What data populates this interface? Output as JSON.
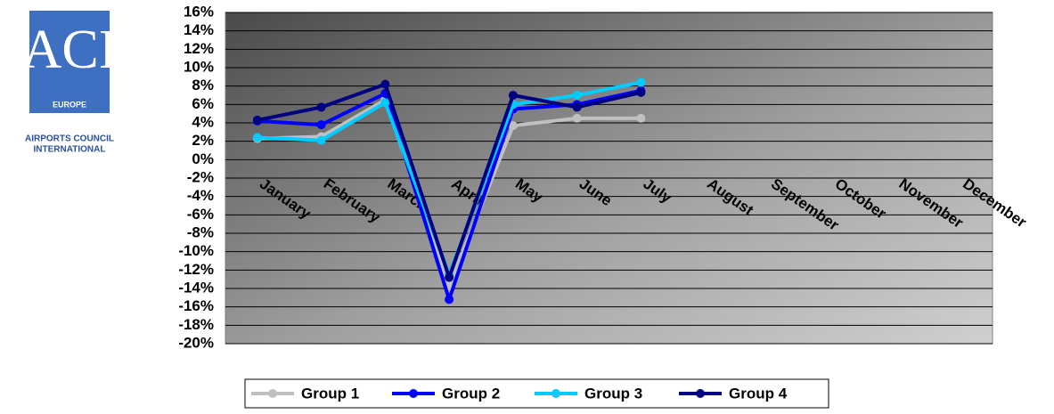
{
  "logo": {
    "mark": "ACI",
    "region": "EUROPE",
    "line1": "AIRPORTS COUNCIL",
    "line2": "INTERNATIONAL"
  },
  "chart_data": {
    "type": "line",
    "categories": [
      "January",
      "February",
      "March",
      "April",
      "May",
      "June",
      "July",
      "August",
      "September",
      "October",
      "November",
      "December"
    ],
    "series": [
      {
        "name": "Group 1",
        "color": "#c0c0c0",
        "values": [
          2.3,
          2.5,
          6.5,
          -13.8,
          3.7,
          4.5,
          4.5,
          null,
          null,
          null,
          null,
          null
        ]
      },
      {
        "name": "Group 2",
        "color": "#0000ff",
        "values": [
          4.2,
          3.8,
          7.2,
          -15.2,
          5.5,
          6.0,
          7.5,
          null,
          null,
          null,
          null,
          null
        ]
      },
      {
        "name": "Group 3",
        "color": "#00ccff",
        "values": [
          2.4,
          2.1,
          6.2,
          -12.5,
          6.0,
          7.0,
          8.4,
          null,
          null,
          null,
          null,
          null
        ]
      },
      {
        "name": "Group 4",
        "color": "#000080",
        "values": [
          4.3,
          5.7,
          8.2,
          -12.8,
          7.0,
          5.7,
          7.3,
          null,
          null,
          null,
          null,
          null
        ]
      }
    ],
    "ylim": [
      -20,
      16
    ],
    "yticks": [
      {
        "value": -20,
        "label": "-20%"
      },
      {
        "value": -18,
        "label": "-18%"
      },
      {
        "value": -16,
        "label": "-16%"
      },
      {
        "value": -14,
        "label": "-14%"
      },
      {
        "value": -12,
        "label": "-12%"
      },
      {
        "value": -10,
        "label": "-10%"
      },
      {
        "value": -8,
        "label": "-8%"
      },
      {
        "value": -6,
        "label": "-6%"
      },
      {
        "value": -4,
        "label": "-4%"
      },
      {
        "value": -2,
        "label": "-2%"
      },
      {
        "value": 0,
        "label": "0%"
      },
      {
        "value": 2,
        "label": "2%"
      },
      {
        "value": 4,
        "label": "4%"
      },
      {
        "value": 6,
        "label": "6%"
      },
      {
        "value": 8,
        "label": "8%"
      },
      {
        "value": 10,
        "label": "10%"
      },
      {
        "value": 12,
        "label": "12%"
      },
      {
        "value": 14,
        "label": "14%"
      },
      {
        "value": 16,
        "label": "16%"
      }
    ],
    "grid": true,
    "legend": "bottom"
  }
}
